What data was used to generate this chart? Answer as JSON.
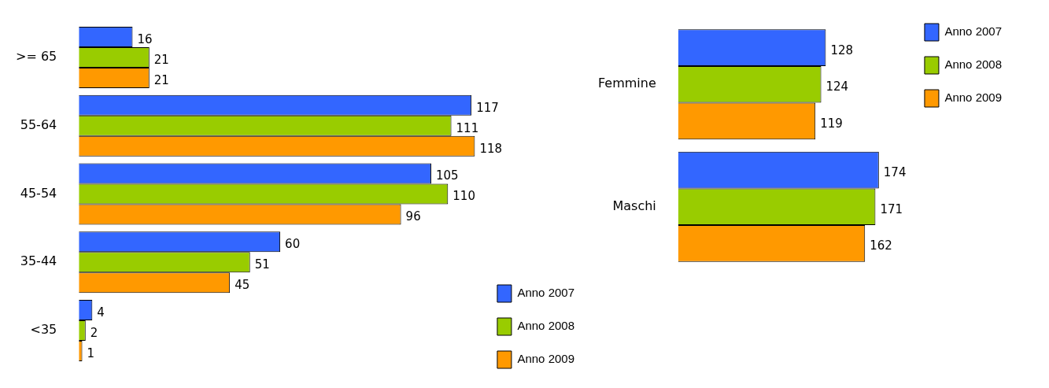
{
  "chart_data": [
    {
      "type": "bar",
      "orientation": "horizontal",
      "categories": [
        ">= 65",
        "55-64",
        "45-54",
        "35-44",
        "<35"
      ],
      "data_labels": true,
      "legend": "bottom right",
      "tick_labels": "y",
      "grid": false,
      "series": [
        {
          "name": "Anno 2007",
          "color": "#3366ff",
          "values": [
            16,
            117,
            105,
            60,
            4
          ]
        },
        {
          "name": "Anno 2008",
          "color": "#99cc00",
          "values": [
            21,
            111,
            110,
            51,
            2
          ]
        },
        {
          "name": "Anno 2009",
          "color": "#ff9900",
          "values": [
            21,
            118,
            96,
            45,
            1
          ]
        }
      ]
    },
    {
      "type": "bar",
      "orientation": "horizontal",
      "categories": [
        "Femmine",
        "Maschi"
      ],
      "data_labels": true,
      "legend": "top right",
      "tick_labels": "y",
      "grid": false,
      "series": [
        {
          "name": "Anno 2007",
          "color": "#3366ff",
          "values": [
            128,
            174
          ]
        },
        {
          "name": "Anno 2008",
          "color": "#99cc00",
          "values": [
            124,
            171
          ]
        },
        {
          "name": "Anno 2009",
          "color": "#ff9900",
          "values": [
            119,
            162
          ]
        }
      ]
    }
  ]
}
